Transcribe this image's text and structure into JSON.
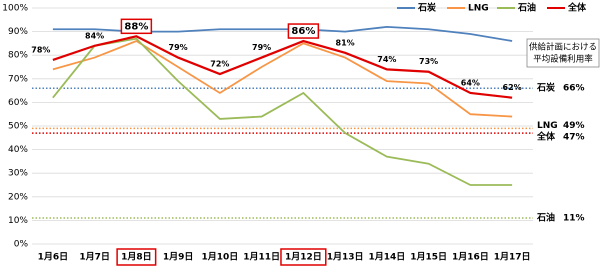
{
  "chart_data": {
    "type": "line",
    "categories": [
      "1月6日",
      "1月7日",
      "1月8日",
      "1月9日",
      "1月10日",
      "1月11日",
      "1月12日",
      "1月13日",
      "1月14日",
      "1月15日",
      "1月16日",
      "1月17日"
    ],
    "series": [
      {
        "name": "石炭",
        "color": "#4f81bd",
        "values": [
          91,
          91,
          90,
          90,
          91,
          91,
          91,
          90,
          92,
          91,
          89,
          86
        ]
      },
      {
        "name": "LNG",
        "color": "#f79646",
        "values": [
          74,
          79,
          86,
          75,
          64,
          75,
          85,
          79,
          69,
          68,
          55,
          54
        ]
      },
      {
        "name": "石油",
        "color": "#9bbb59",
        "values": [
          62,
          84,
          87,
          69,
          53,
          54,
          64,
          47,
          37,
          34,
          25,
          25
        ]
      },
      {
        "name": "全体",
        "color": "#e00000",
        "values": [
          78,
          84,
          88,
          79,
          72,
          79,
          86,
          81,
          74,
          73,
          64,
          62
        ],
        "value_labels": [
          "78%",
          "84%",
          "88%",
          "79%",
          "72%",
          "79%",
          "86%",
          "81%",
          "74%",
          "73%",
          "64%",
          "62%"
        ]
      }
    ],
    "highlight": [
      2,
      6
    ],
    "reference_lines": [
      {
        "name": "石炭",
        "value": 66,
        "label": "66%",
        "color": "#4f81bd"
      },
      {
        "name": "LNG",
        "value": 49,
        "label": "49%",
        "color": "#f79646"
      },
      {
        "name": "全体",
        "value": 47,
        "label": "47%",
        "color": "#e00000"
      },
      {
        "name": "石油",
        "value": 11,
        "label": "11%",
        "color": "#9bbb59"
      }
    ],
    "annotation": [
      "供給計画における",
      "平均設備利用率"
    ],
    "ylim": [
      0,
      100
    ],
    "yticks": [
      {
        "value": 0,
        "label": "0%"
      },
      {
        "value": 10,
        "label": "10%"
      },
      {
        "value": 20,
        "label": "20%"
      },
      {
        "value": 30,
        "label": "30%"
      },
      {
        "value": 40,
        "label": "40%"
      },
      {
        "value": 50,
        "label": "50%"
      },
      {
        "value": 60,
        "label": "60%"
      },
      {
        "value": 70,
        "label": "70%"
      },
      {
        "value": 80,
        "label": "80%"
      },
      {
        "value": 90,
        "label": "90%"
      },
      {
        "value": 100,
        "label": "100%"
      }
    ],
    "grid": true
  }
}
